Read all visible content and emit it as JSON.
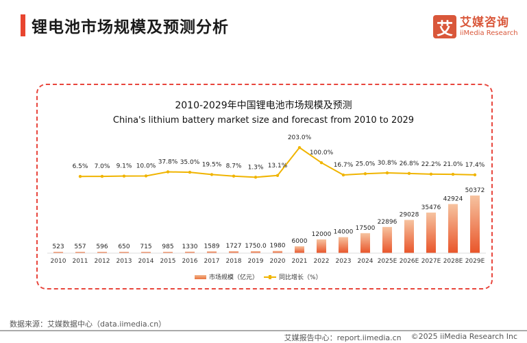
{
  "header": {
    "title": "锂电池市场规模及预测分析",
    "logo_mark": "艾",
    "logo_cn": "艾媒咨询",
    "logo_en": "iiMedia Research"
  },
  "chart_data": {
    "type": "bar+line",
    "title": "2010-2029年中国锂电池市场规模及预测",
    "subtitle": "China's lithium battery market size and forecast from 2010 to 2029",
    "categories": [
      "2010",
      "2011",
      "2012",
      "2013",
      "2014",
      "2015",
      "2016",
      "2017",
      "2018",
      "2019",
      "2020",
      "2021",
      "2022",
      "2023",
      "2024",
      "2025E",
      "2026E",
      "2027E",
      "2028E",
      "2029E"
    ],
    "series": [
      {
        "name": "市场规模（亿元）",
        "type": "bar",
        "color": "#e9632f",
        "values": [
          523,
          557,
          596,
          650,
          715,
          985,
          1330,
          1589,
          1727,
          1750,
          1980,
          6000,
          12000,
          14000,
          17500,
          22896,
          29028,
          35476,
          42924,
          50372
        ],
        "labels": [
          "523",
          "557",
          "596",
          "650",
          "715",
          "985",
          "1330",
          "1589",
          "1727",
          "1750.0",
          "1980",
          "6000",
          "12000",
          "14000",
          "17500",
          "22896",
          "29028",
          "35476",
          "42924",
          "50372"
        ]
      },
      {
        "name": "同比增长（%）",
        "type": "line",
        "color": "#f0b400",
        "values": [
          null,
          6.5,
          7.0,
          9.1,
          10.0,
          37.8,
          35.0,
          19.5,
          8.7,
          1.3,
          13.1,
          203.0,
          100.0,
          16.7,
          25.0,
          30.8,
          26.8,
          22.2,
          21.0,
          17.4
        ],
        "labels": [
          "",
          "6.5%",
          "7.0%",
          "9.1%",
          "10.0%",
          "37.8%",
          "35.0%",
          "19.5%",
          "8.7%",
          "1.3%",
          "13.1%",
          "203.0%",
          "100.0%",
          "16.7%",
          "25.0%",
          "30.8%",
          "26.8%",
          "22.2%",
          "21.0%",
          "17.4%"
        ]
      }
    ],
    "legend": "bottom",
    "grid": false
  },
  "footer": {
    "source": "数据来源：艾媒数据中心（data.iimedia.cn）",
    "report": "艾媒报告中心：report.iimedia.cn",
    "copyright": "©2025  iiMedia Research  Inc"
  }
}
